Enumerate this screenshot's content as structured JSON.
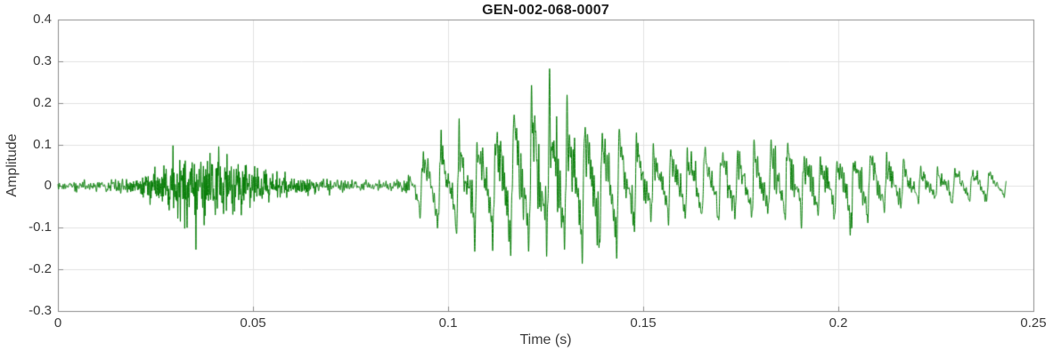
{
  "chart_data": {
    "type": "line",
    "title": "GEN-002-068-0007",
    "xlabel": "Time (s)",
    "ylabel": "Amplitude",
    "xlim": [
      0,
      0.25
    ],
    "ylim": [
      -0.3,
      0.4
    ],
    "xticks": [
      0,
      0.05,
      0.1,
      0.15,
      0.2,
      0.25
    ],
    "xtick_labels": [
      "0",
      "0.05",
      "0.1",
      "0.15",
      "0.2",
      "0.25"
    ],
    "yticks": [
      -0.3,
      -0.2,
      -0.1,
      0,
      0.1,
      0.2,
      0.3,
      0.4
    ],
    "ytick_labels": [
      "-0.3",
      "-0.2",
      "-0.1",
      "0",
      "0.1",
      "0.2",
      "0.3",
      "0.4"
    ],
    "grid": true,
    "line_color": "#067d06",
    "waveform": {
      "duration_s": 0.243,
      "envelope_t": [
        0.0,
        0.005,
        0.01,
        0.015,
        0.02,
        0.024,
        0.028,
        0.031,
        0.034,
        0.037,
        0.04,
        0.043,
        0.046,
        0.049,
        0.052,
        0.056,
        0.06,
        0.065,
        0.07,
        0.075,
        0.08,
        0.085,
        0.088,
        0.091,
        0.094,
        0.098,
        0.102,
        0.106,
        0.11,
        0.114,
        0.118,
        0.122,
        0.126,
        0.13,
        0.134,
        0.138,
        0.142,
        0.146,
        0.15,
        0.155,
        0.16,
        0.165,
        0.17,
        0.175,
        0.18,
        0.184,
        0.188,
        0.192,
        0.196,
        0.2,
        0.204,
        0.208,
        0.212,
        0.216,
        0.22,
        0.225,
        0.23,
        0.235,
        0.24,
        0.243
      ],
      "envelope_pos": [
        0.012,
        0.015,
        0.018,
        0.022,
        0.035,
        0.06,
        0.085,
        0.11,
        0.125,
        0.12,
        0.155,
        0.13,
        0.115,
        0.13,
        0.085,
        0.06,
        0.04,
        0.03,
        0.022,
        0.018,
        0.015,
        0.018,
        0.025,
        0.06,
        0.12,
        0.15,
        0.16,
        0.17,
        0.195,
        0.22,
        0.26,
        0.3,
        0.36,
        0.3,
        0.23,
        0.19,
        0.18,
        0.175,
        0.16,
        0.15,
        0.14,
        0.13,
        0.12,
        0.12,
        0.13,
        0.185,
        0.15,
        0.13,
        0.1,
        0.09,
        0.1,
        0.115,
        0.1,
        0.08,
        0.065,
        0.06,
        0.07,
        0.06,
        0.05,
        0.03
      ],
      "envelope_neg": [
        0.012,
        0.015,
        0.018,
        0.022,
        0.035,
        0.055,
        0.09,
        0.13,
        0.18,
        0.12,
        0.12,
        0.11,
        0.13,
        0.09,
        0.08,
        0.055,
        0.04,
        0.03,
        0.022,
        0.018,
        0.015,
        0.018,
        0.025,
        0.06,
        0.12,
        0.14,
        0.15,
        0.16,
        0.17,
        0.18,
        0.185,
        0.195,
        0.2,
        0.19,
        0.185,
        0.195,
        0.21,
        0.15,
        0.12,
        0.11,
        0.105,
        0.1,
        0.1,
        0.1,
        0.1,
        0.105,
        0.11,
        0.12,
        0.095,
        0.09,
        0.17,
        0.09,
        0.08,
        0.065,
        0.055,
        0.05,
        0.06,
        0.05,
        0.045,
        0.03
      ],
      "segments": [
        {
          "t0": 0.0,
          "t1": 0.018,
          "kind": "noise"
        },
        {
          "t0": 0.018,
          "t1": 0.066,
          "kind": "noisy",
          "f0": 430
        },
        {
          "t0": 0.066,
          "t1": 0.09,
          "kind": "noise"
        },
        {
          "t0": 0.09,
          "t1": 0.243,
          "kind": "voiced",
          "f0": 225
        }
      ]
    }
  },
  "figure": {
    "background": "#ffffff",
    "grid_color": "#e2e2e2",
    "axis_color": "#8c8c8c",
    "tick_color": "#8c8c8c",
    "label_color": "#3c3c3c",
    "title_color": "#212121"
  }
}
